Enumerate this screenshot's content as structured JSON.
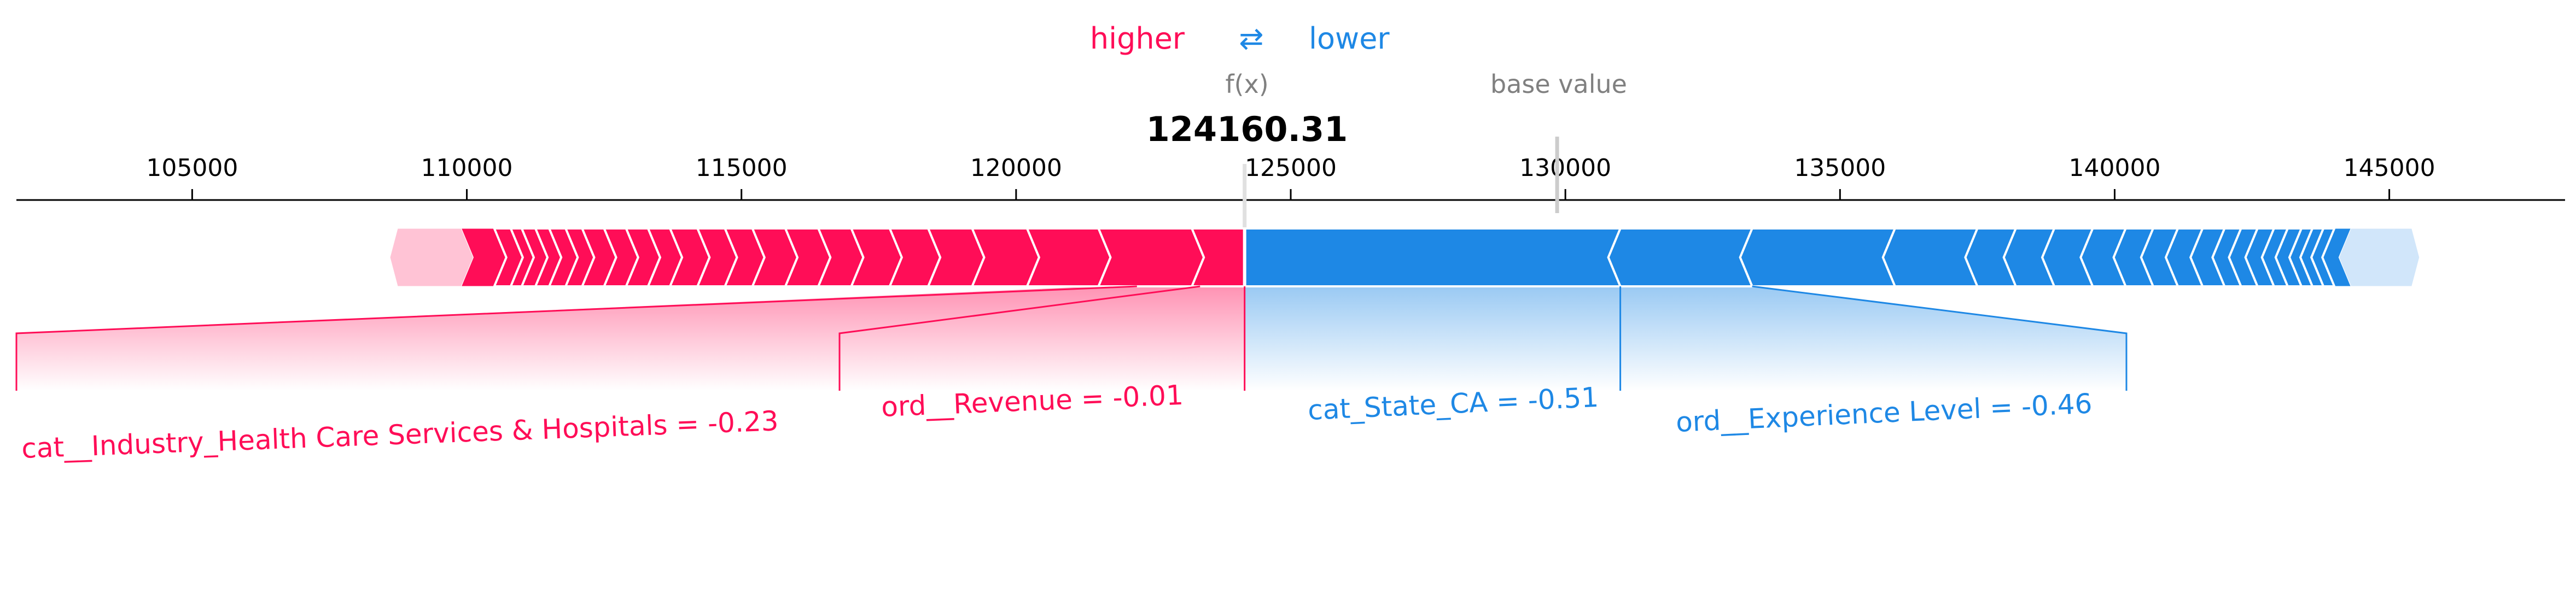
{
  "legend": {
    "higher": "higher",
    "arrow": "⇄",
    "lower": "lower"
  },
  "annotations": {
    "fx_label": "f(x)",
    "base_label": "base value"
  },
  "colors": {
    "positive": "#ff0d57",
    "negative": "#1e88e5",
    "positive_light": "#ffc3d5",
    "negative_light": "#d1e6fa",
    "annotation": "#808080"
  },
  "chart_data": {
    "type": "force",
    "fx": 124160.31,
    "fx_text": "124160.31",
    "base_value": 129850,
    "xlim": [
      101800,
      148200
    ],
    "ticks": [
      105000,
      110000,
      115000,
      120000,
      125000,
      130000,
      135000,
      140000,
      145000
    ],
    "tick_labels": [
      "105000",
      "110000",
      "115000",
      "120000",
      "125000",
      "130000",
      "135000",
      "140000",
      "145000"
    ],
    "positive_range": [
      108800,
      124160.31
    ],
    "negative_range": [
      124160.31,
      145350
    ],
    "positive_boundaries": [
      108800,
      109900,
      110500,
      110800,
      111000,
      111250,
      111500,
      111800,
      112100,
      112500,
      112900,
      113300,
      113700,
      114200,
      114700,
      115200,
      115800,
      116400,
      117000,
      117700,
      118400,
      119200,
      120200,
      121500,
      123200
    ],
    "negative_boundaries": [
      145350,
      144300,
      144000,
      143800,
      143600,
      143400,
      143150,
      142900,
      142600,
      142300,
      142000,
      141600,
      141150,
      140700,
      140200,
      139600,
      138900,
      138200,
      137500,
      136000,
      133400,
      131000
    ],
    "features": [
      {
        "label": "cat__Industry_Health Care Services & Hospitals = -0.23",
        "side": "positive",
        "x0": 121500,
        "x1": 123200
      },
      {
        "label": "ord__Revenue = -0.01",
        "side": "positive",
        "x0": 123200,
        "x1": 124160.31
      },
      {
        "label": "cat_State_CA = -0.51",
        "side": "negative",
        "x0": 124160.31,
        "x1": 131000
      },
      {
        "label": "ord__Experience Level = -0.46",
        "side": "negative",
        "x0": 131000,
        "x1": 133400
      }
    ]
  }
}
